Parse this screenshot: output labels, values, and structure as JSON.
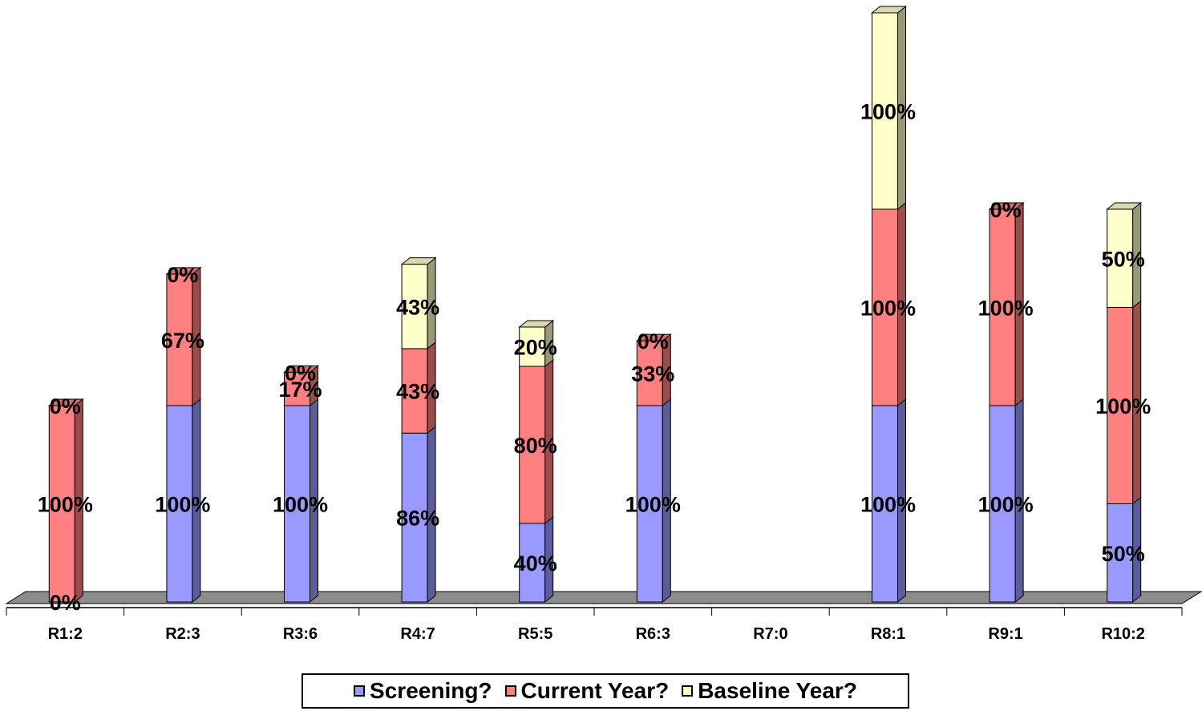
{
  "chart_data": {
    "type": "bar",
    "stacked": true,
    "three_d": true,
    "categories": [
      "R1:2",
      "R2:3",
      "R3:6",
      "R4:7",
      "R5:5",
      "R6:3",
      "R7:0",
      "R8:1",
      "R9:1",
      "R10:2"
    ],
    "series": [
      {
        "name": "Screening?",
        "color": "#9999FF",
        "values": [
          0,
          100,
          100,
          86,
          40,
          100,
          null,
          100,
          100,
          50
        ],
        "labels": [
          "0%",
          "100%",
          "100%",
          "86%",
          "40%",
          "100%",
          null,
          "100%",
          "100%",
          "50%"
        ]
      },
      {
        "name": "Current Year?",
        "color": "#FF8080",
        "values": [
          100,
          67,
          17,
          43,
          80,
          33,
          null,
          100,
          100,
          100
        ],
        "labels": [
          "100%",
          "67%",
          "17%",
          "43%",
          "80%",
          "33%",
          null,
          "100%",
          "100%",
          "100%"
        ]
      },
      {
        "name": "Baseline Year?",
        "color": "#FFFFCC",
        "values": [
          0,
          0,
          0,
          43,
          20,
          0,
          null,
          100,
          0,
          50
        ],
        "labels": [
          "0%",
          "0%",
          "0%",
          "43%",
          "20%",
          "0%",
          null,
          "100%",
          "0%",
          "50%"
        ]
      }
    ],
    "ylim": [
      0,
      300
    ],
    "title": "",
    "xlabel": "",
    "ylabel": "",
    "legend_position": "bottom",
    "grid": false
  }
}
